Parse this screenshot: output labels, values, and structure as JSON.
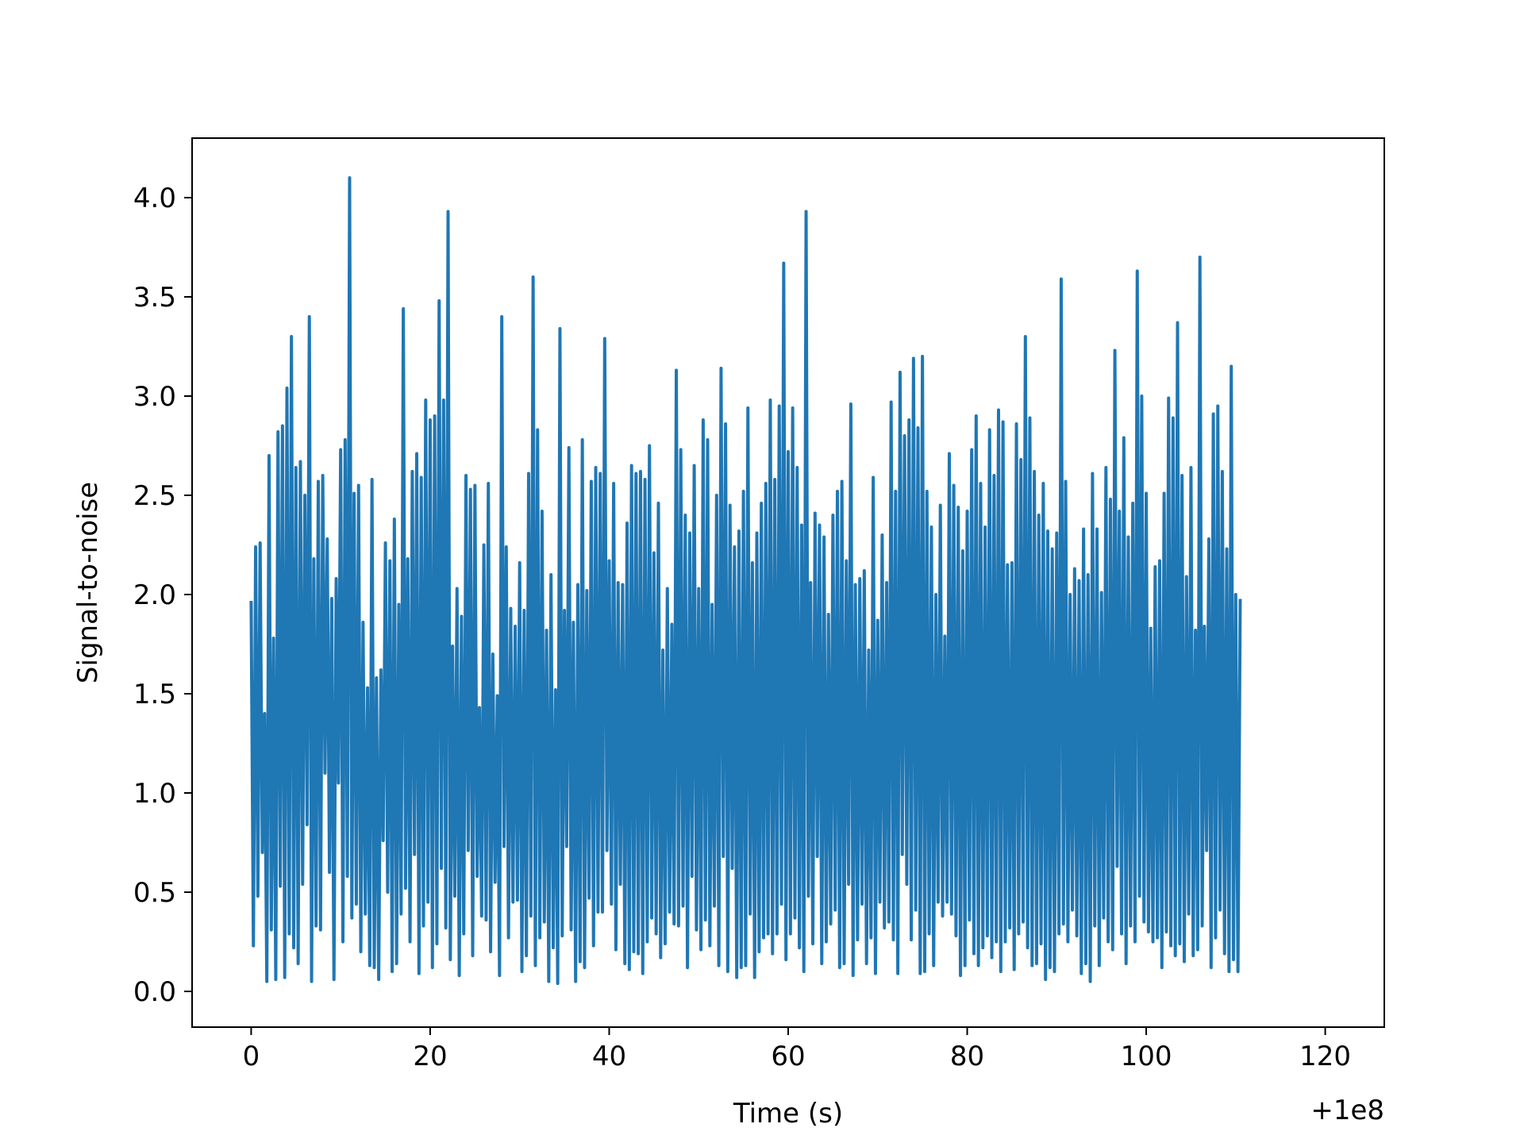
{
  "chart_data": {
    "type": "line",
    "title": "",
    "xlabel": "Time (s)",
    "ylabel": "Signal-to-noise",
    "x_offset_label": "+1e8",
    "xlim": [
      -6.6,
      126.6
    ],
    "ylim": [
      -0.18,
      4.3
    ],
    "x_ticks": [
      0,
      20,
      40,
      60,
      80,
      100,
      120
    ],
    "x_tick_labels": [
      "0",
      "20",
      "40",
      "60",
      "80",
      "100",
      "120"
    ],
    "y_ticks": [
      0.0,
      0.5,
      1.0,
      1.5,
      2.0,
      2.5,
      3.0,
      3.5,
      4.0
    ],
    "y_tick_labels": [
      "0.0",
      "0.5",
      "1.0",
      "1.5",
      "2.0",
      "2.5",
      "3.0",
      "3.5",
      "4.0"
    ],
    "grid": false,
    "legend": "none",
    "colors": {
      "series": "#1f77b4",
      "axes": "#000000",
      "background": "#ffffff"
    },
    "series": [
      {
        "x_start": 0,
        "x_step": 0.25,
        "values": [
          1.96,
          0.23,
          2.24,
          0.48,
          2.26,
          0.7,
          1.4,
          0.05,
          2.7,
          0.31,
          1.78,
          0.06,
          2.82,
          0.53,
          2.85,
          0.07,
          3.04,
          0.29,
          3.3,
          0.22,
          2.64,
          0.14,
          2.67,
          0.54,
          2.5,
          0.84,
          3.4,
          0.05,
          2.18,
          0.33,
          2.57,
          0.31,
          2.6,
          1.1,
          2.28,
          0.6,
          1.98,
          0.06,
          2.08,
          1.05,
          2.73,
          0.25,
          2.78,
          0.58,
          4.1,
          0.37,
          2.51,
          0.44,
          2.55,
          0.2,
          1.86,
          0.39,
          1.53,
          0.13,
          2.58,
          0.12,
          1.58,
          0.06,
          1.62,
          0.76,
          2.26,
          0.5,
          2.17,
          0.1,
          2.38,
          0.14,
          1.95,
          0.39,
          3.44,
          0.52,
          2.18,
          0.25,
          2.62,
          0.69,
          2.71,
          0.09,
          2.59,
          0.33,
          2.98,
          0.45,
          2.88,
          0.12,
          2.9,
          0.24,
          3.48,
          0.62,
          2.98,
          0.32,
          3.93,
          0.16,
          1.74,
          0.48,
          2.03,
          0.08,
          1.89,
          0.29,
          2.6,
          0.71,
          2.53,
          0.18,
          2.55,
          0.58,
          1.43,
          0.38,
          2.25,
          0.36,
          2.56,
          0.2,
          1.7,
          0.55,
          1.49,
          0.08,
          3.4,
          0.73,
          2.24,
          0.27,
          1.93,
          0.45,
          1.84,
          0.46,
          2.16,
          0.1,
          1.92,
          0.18,
          2.61,
          0.38,
          3.6,
          0.13,
          2.83,
          0.27,
          2.42,
          0.35,
          1.82,
          0.05,
          2.1,
          0.22,
          1.52,
          0.04,
          3.34,
          0.28,
          1.92,
          0.73,
          2.74,
          0.31,
          1.86,
          0.05,
          2.05,
          0.15,
          2.78,
          0.12,
          2.02,
          0.47,
          2.57,
          0.23,
          2.64,
          0.4,
          2.61,
          0.4,
          3.29,
          0.71,
          2.17,
          0.44,
          2.56,
          0.21,
          2.06,
          0.54,
          2.05,
          0.14,
          2.36,
          0.11,
          2.65,
          0.2,
          2.61,
          0.19,
          2.62,
          0.09,
          2.58,
          0.25,
          2.75,
          0.37,
          2.21,
          0.29,
          2.46,
          0.17,
          1.72,
          0.24,
          2.03,
          0.4,
          1.85,
          0.34,
          3.13,
          0.33,
          2.73,
          0.43,
          2.4,
          0.12,
          2.31,
          0.58,
          2.65,
          0.31,
          2.03,
          0.21,
          2.88,
          0.36,
          2.78,
          0.23,
          1.95,
          0.43,
          2.5,
          0.13,
          3.14,
          0.68,
          2.86,
          0.1,
          2.45,
          0.62,
          2.24,
          0.07,
          2.32,
          0.12,
          2.52,
          0.13,
          2.94,
          0.39,
          2.16,
          0.07,
          2.31,
          0.2,
          2.46,
          0.27,
          2.56,
          0.29,
          2.98,
          0.19,
          2.58,
          0.29,
          2.95,
          0.44,
          3.67,
          0.16,
          2.72,
          0.29,
          2.94,
          0.37,
          2.64,
          0.22,
          2.35,
          0.1,
          3.93,
          0.48,
          2.06,
          0.24,
          2.41,
          0.68,
          2.35,
          0.14,
          2.29,
          0.25,
          1.9,
          0.34,
          2.4,
          0.41,
          2.52,
          0.12,
          2.57,
          0.14,
          2.17,
          0.54,
          2.96,
          0.08,
          2.05,
          0.26,
          2.08,
          0.44,
          2.12,
          0.14,
          1.72,
          0.27,
          2.59,
          0.09,
          1.87,
          0.45,
          2.3,
          0.32,
          2.06,
          0.35,
          2.97,
          0.26,
          2.52,
          0.09,
          3.12,
          0.69,
          2.8,
          0.54,
          2.88,
          0.26,
          3.19,
          0.41,
          2.84,
          0.09,
          3.2,
          0.1,
          2.52,
          0.29,
          2.34,
          0.13,
          2.0,
          0.45,
          2.45,
          0.38,
          1.79,
          0.45,
          2.71,
          0.39,
          2.55,
          0.28,
          2.44,
          0.08,
          2.22,
          0.13,
          2.42,
          0.36,
          2.73,
          0.19,
          2.9,
          0.13,
          2.56,
          0.22,
          2.34,
          0.28,
          2.83,
          0.17,
          2.6,
          0.25,
          2.93,
          0.1,
          2.87,
          0.25,
          2.15,
          0.32,
          2.16,
          0.11,
          2.86,
          0.29,
          2.68,
          0.35,
          3.3,
          0.22,
          2.89,
          0.13,
          2.62,
          0.14,
          2.4,
          0.24,
          2.56,
          0.06,
          2.32,
          0.12,
          2.23,
          0.1,
          2.31,
          0.29,
          3.59,
          0.34,
          2.57,
          0.25,
          2.0,
          0.41,
          2.13,
          0.28,
          2.07,
          0.09,
          2.33,
          0.14,
          2.1,
          0.05,
          2.61,
          0.33,
          2.33,
          0.13,
          2.01,
          0.37,
          2.64,
          0.25,
          2.48,
          0.21,
          3.23,
          0.63,
          2.42,
          0.29,
          2.79,
          0.14,
          2.29,
          0.33,
          2.46,
          0.25,
          3.63,
          0.48,
          3.0,
          0.35,
          2.51,
          0.3,
          1.83,
          0.25,
          2.14,
          0.27,
          2.17,
          0.12,
          2.51,
          0.3,
          2.99,
          0.23,
          2.89,
          0.18,
          3.37,
          0.24,
          2.6,
          0.15,
          2.09,
          0.39,
          2.64,
          0.18,
          1.82,
          0.21,
          3.7,
          0.33,
          1.84,
          0.71,
          2.28,
          0.12,
          2.91,
          0.27,
          2.95,
          0.41,
          2.62,
          0.19,
          2.23,
          0.1,
          3.15,
          0.16,
          2.0,
          0.1,
          1.97
        ]
      }
    ]
  }
}
